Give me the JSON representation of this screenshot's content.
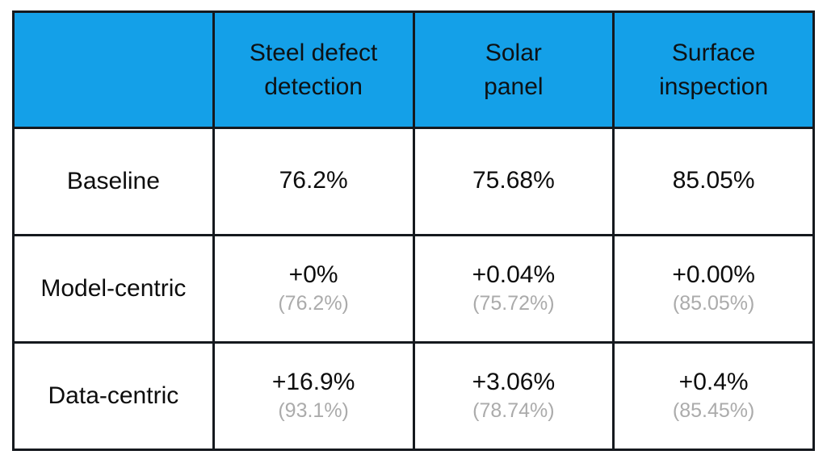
{
  "colors": {
    "header_bg": "#14a0e8",
    "border": "#15191e",
    "cell_text": "#0d0d0d",
    "sub_text": "#ababab",
    "page_bg": "#ffffff"
  },
  "table": {
    "header": {
      "corner": "",
      "columns": [
        "Steel defect\ndetection",
        "Solar\npanel",
        "Surface\ninspection"
      ]
    },
    "rows": [
      {
        "label": "Baseline",
        "cells": [
          {
            "value": "76.2%",
            "sub": ""
          },
          {
            "value": "75.68%",
            "sub": ""
          },
          {
            "value": "85.05%",
            "sub": ""
          }
        ]
      },
      {
        "label": "Model-centric",
        "cells": [
          {
            "value": "+0%",
            "sub": "(76.2%)"
          },
          {
            "value": "+0.04%",
            "sub": "(75.72%)"
          },
          {
            "value": "+0.00%",
            "sub": "(85.05%)"
          }
        ]
      },
      {
        "label": "Data-centric",
        "cells": [
          {
            "value": "+16.9%",
            "sub": "(93.1%)"
          },
          {
            "value": "+3.06%",
            "sub": "(78.74%)"
          },
          {
            "value": "+0.4%",
            "sub": "(85.45%)"
          }
        ]
      }
    ]
  },
  "chart_data": {
    "type": "table",
    "columns": [
      "",
      "Steel defect detection",
      "Solar panel",
      "Surface inspection"
    ],
    "rows": [
      [
        "Baseline",
        "76.2%",
        "75.68%",
        "85.05%"
      ],
      [
        "Model-centric",
        "+0% (76.2%)",
        "+0.04% (75.72%)",
        "+0.00% (85.05%)"
      ],
      [
        "Data-centric",
        "+16.9% (93.1%)",
        "+3.06% (78.74%)",
        "+0.4% (85.45%)"
      ]
    ],
    "notes": {
      "baseline_values": [
        76.2,
        75.68,
        85.05
      ],
      "model_centric_delta": [
        0,
        0.04,
        0.0
      ],
      "model_centric_absolute": [
        76.2,
        75.72,
        85.05
      ],
      "data_centric_delta": [
        16.9,
        3.06,
        0.4
      ],
      "data_centric_absolute": [
        93.1,
        78.74,
        85.45
      ]
    }
  }
}
